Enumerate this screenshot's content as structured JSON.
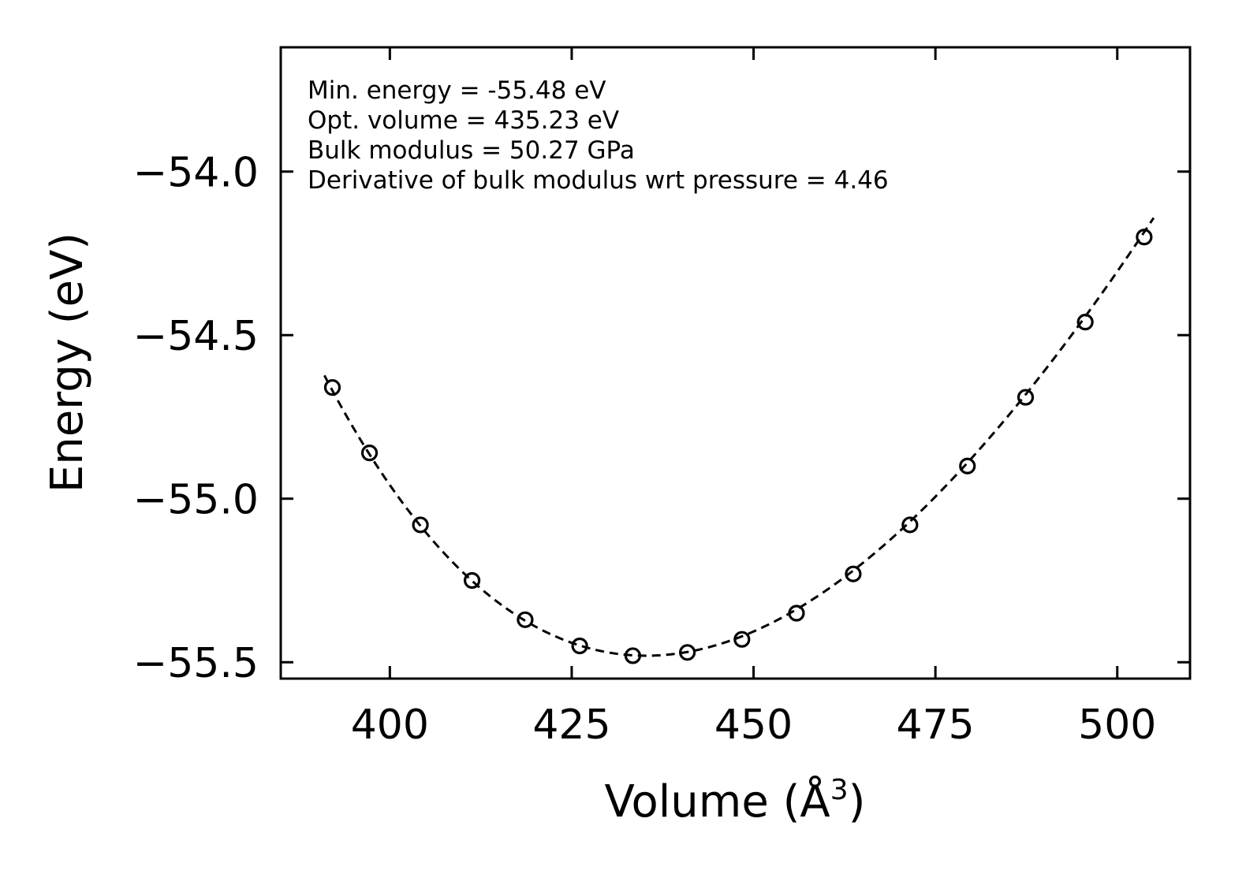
{
  "chart_data": {
    "type": "scatter",
    "xlabel": "Volume (Å",
    "xlabel_sup": "3",
    "xlabel_end": ")",
    "ylabel": "Energy (eV)",
    "xlim": [
      385,
      510
    ],
    "ylim": [
      -55.55,
      -53.62
    ],
    "x_ticks": [
      400,
      425,
      450,
      475,
      500
    ],
    "x_tick_labels": [
      "400",
      "425",
      "450",
      "475",
      "500"
    ],
    "y_ticks": [
      -54.0,
      -54.5,
      -55.0,
      -55.5
    ],
    "y_tick_labels": [
      "−54.0",
      "−54.5",
      "−55.0",
      "−55.5"
    ],
    "grid": false,
    "annotations": [
      "Min. energy = -55.48 eV",
      "Opt. volume = 435.23 eV",
      "Bulk modulus = 50.27 GPa",
      "Derivative of bulk modulus wrt pressure = 4.46"
    ],
    "series": [
      {
        "style": "open-circle markers",
        "x": [
          392.1,
          397.2,
          404.2,
          411.3,
          418.6,
          426.1,
          433.4,
          440.9,
          448.4,
          455.9,
          463.7,
          471.5,
          479.4,
          487.4,
          495.6,
          503.7
        ],
        "y": [
          -54.66,
          -54.86,
          -55.08,
          -55.25,
          -55.37,
          -55.45,
          -55.48,
          -55.47,
          -55.43,
          -55.35,
          -55.23,
          -55.08,
          -54.9,
          -54.69,
          -54.46,
          -54.2
        ]
      },
      {
        "style": "dashed fit line",
        "fit": {
          "E0": -55.48,
          "V0": 435.23,
          "B0_GPa": 50.27,
          "B0_prime": 4.46,
          "x_range": [
            391.0,
            505.0
          ]
        }
      }
    ],
    "colors": {
      "line": "#000000",
      "marker": "#000000",
      "background": "#ffffff"
    }
  }
}
